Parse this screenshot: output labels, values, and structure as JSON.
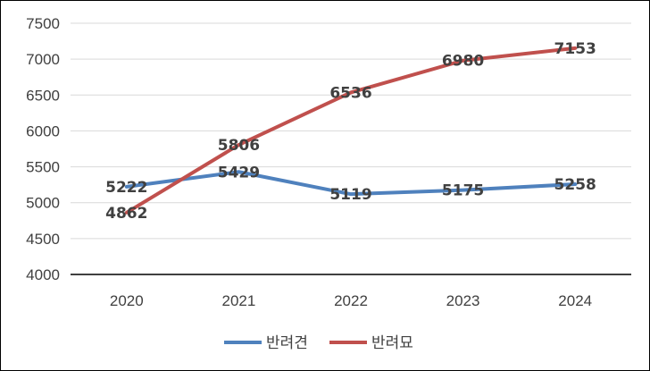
{
  "chart_data": {
    "type": "line",
    "title": "",
    "xlabel": "",
    "ylabel": "",
    "categories": [
      "2020",
      "2021",
      "2022",
      "2023",
      "2024"
    ],
    "series": [
      {
        "name": "반려견",
        "values": [
          5222,
          5429,
          5119,
          5175,
          5258
        ],
        "color": "#4F81BD"
      },
      {
        "name": "반려묘",
        "values": [
          4862,
          5806,
          6536,
          6980,
          7153
        ],
        "color": "#C0504D"
      }
    ],
    "ylim": [
      4000,
      7500
    ],
    "yticks": [
      4000,
      4500,
      5000,
      5500,
      6000,
      6500,
      7000,
      7500
    ],
    "grid": true,
    "legend_position": "bottom",
    "data_labels": true
  }
}
